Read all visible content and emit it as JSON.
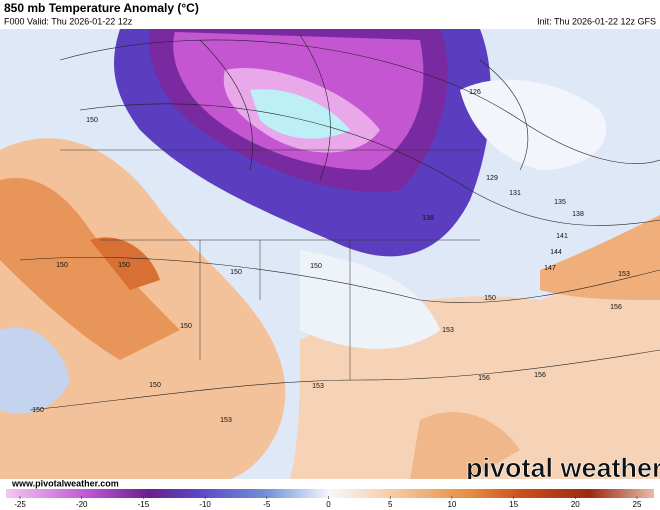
{
  "header": {
    "title": "850 mb Temperature Anomaly (°C)",
    "valid": "F000 Valid: Thu 2026-01-22 12z",
    "init": "Init: Thu 2026-01-22 12z GFS"
  },
  "contour_labels": [
    "150",
    "126",
    "129",
    "131",
    "135",
    "138",
    "138",
    "141",
    "144",
    "147",
    "150",
    "150",
    "150",
    "150",
    "150",
    "150",
    "153",
    "156",
    "153",
    "156",
    "156",
    "150",
    "150",
    "153",
    "153"
  ],
  "footer": {
    "website": "www.pivotalweather.com",
    "watermark": "pivotal weather"
  },
  "colorbar": {
    "range": [
      -25,
      25
    ],
    "ticks": [
      -25,
      -20,
      -15,
      -10,
      -5,
      0,
      5,
      10,
      15,
      20,
      25
    ]
  }
}
